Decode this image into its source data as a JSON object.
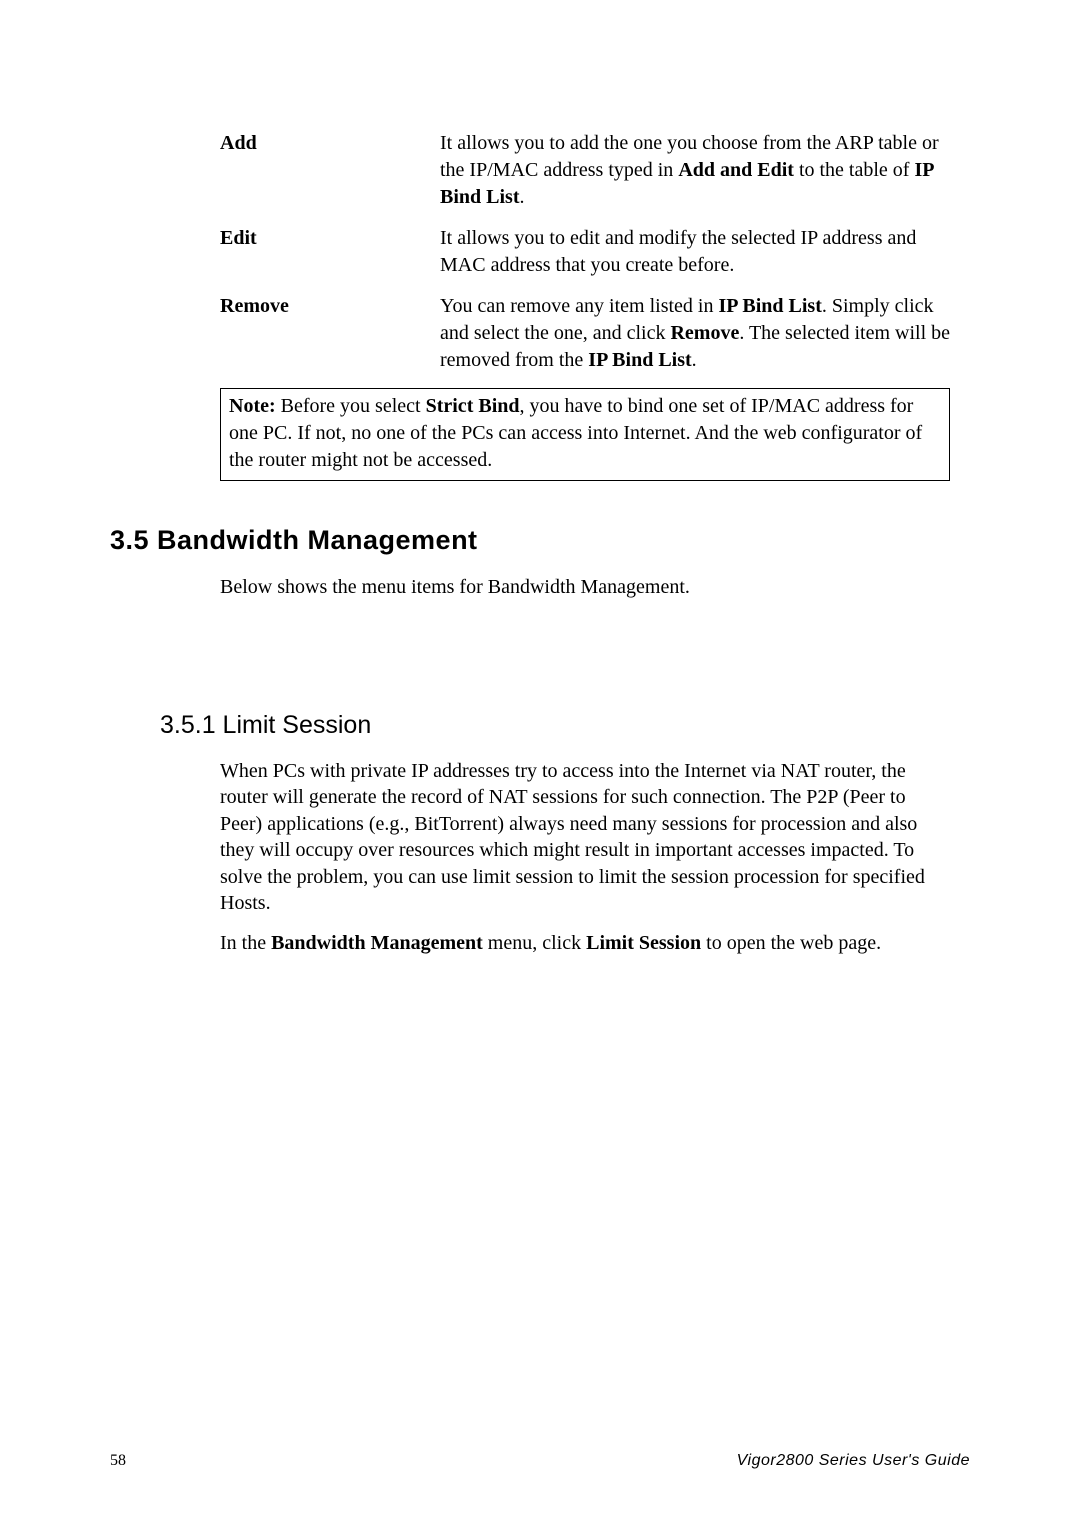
{
  "defs": {
    "add": {
      "term": "Add",
      "desc_parts": [
        {
          "t": "It allows you to add the one you choose from the ARP table or the IP/MAC address typed in ",
          "b": false
        },
        {
          "t": "Add and Edit",
          "b": true
        },
        {
          "t": " to the table of ",
          "b": false
        },
        {
          "t": "IP Bind List",
          "b": true
        },
        {
          "t": ".",
          "b": false
        }
      ]
    },
    "edit": {
      "term": "Edit",
      "desc_parts": [
        {
          "t": "It allows you to edit and modify the selected IP address and MAC address that you create before.",
          "b": false
        }
      ]
    },
    "remove": {
      "term": "Remove",
      "desc_parts": [
        {
          "t": "You can remove any item listed in ",
          "b": false
        },
        {
          "t": "IP Bind List",
          "b": true
        },
        {
          "t": ". Simply click and select the one, and click ",
          "b": false
        },
        {
          "t": "Remove",
          "b": true
        },
        {
          "t": ". The selected item will be removed from the ",
          "b": false
        },
        {
          "t": "IP Bind List",
          "b": true
        },
        {
          "t": ".",
          "b": false
        }
      ]
    }
  },
  "note_parts": [
    {
      "t": "Note:",
      "b": true
    },
    {
      "t": " Before you select ",
      "b": false
    },
    {
      "t": "Strict Bind",
      "b": true
    },
    {
      "t": ", you have to bind one set of IP/MAC address for one PC. If not, no one of the PCs can access into Internet. And the web configurator of the router might not be accessed.",
      "b": false
    }
  ],
  "section35": {
    "heading": "3.5 Bandwidth Management",
    "intro": "Below shows the menu items for Bandwidth Management."
  },
  "section351": {
    "heading": "3.5.1 Limit Session",
    "p1": "When PCs with private IP addresses try to access into the Internet via NAT router, the router will generate the record of NAT sessions for such connection. The P2P (Peer to Peer) applications (e.g., BitTorrent) always need many sessions for procession and also they will occupy over resources which might result in important accesses impacted. To solve the problem, you can use limit session to limit the session procession for specified Hosts.",
    "p2_parts": [
      {
        "t": "In the ",
        "b": false
      },
      {
        "t": "Bandwidth Management",
        "b": true
      },
      {
        "t": " menu, click ",
        "b": false
      },
      {
        "t": "Limit Session",
        "b": true
      },
      {
        "t": " to open the web page.",
        "b": false
      }
    ]
  },
  "footer": {
    "page": "58",
    "title": "Vigor2800 Series User's Guide"
  }
}
